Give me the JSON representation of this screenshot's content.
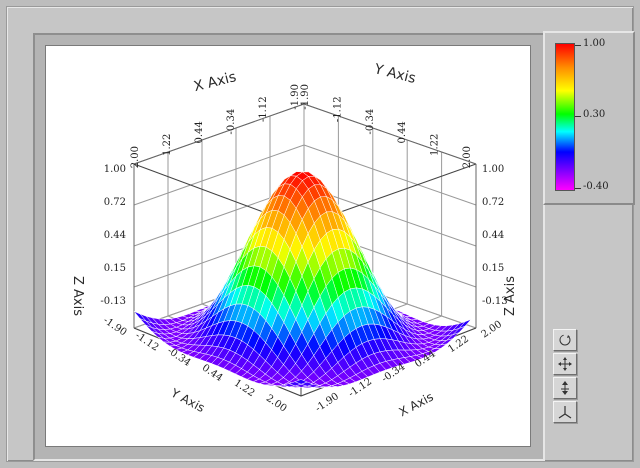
{
  "graph": {
    "axes": {
      "x_label": "X Axis",
      "y_label": "Y Axis",
      "z_label": "Z Axis"
    },
    "x_ticks": [
      "2.00",
      "1.22",
      "0.44",
      "-0.34",
      "-1.12",
      "-1.90"
    ],
    "y_ticks": [
      "-1.90",
      "-1.12",
      "-0.34",
      "0.44",
      "1.22",
      "2.00"
    ],
    "z_ticks": [
      "1.00",
      "0.72",
      "0.44",
      "0.15",
      "-0.13"
    ],
    "colors": {
      "background": "#bdbdbd",
      "plot_bg": "#ffffff",
      "grid": "#8a8a8a",
      "mesh_line": "#ffffff"
    }
  },
  "colorbar": {
    "labels": [
      "1.00",
      "0.30",
      "-0.40"
    ],
    "max": 1.0,
    "min": -0.4
  },
  "toolbar": {
    "buttons": [
      {
        "name": "rotate-tool",
        "icon": "rotate-icon"
      },
      {
        "name": "pan-tool",
        "icon": "pan-icon"
      },
      {
        "name": "zoom-tool",
        "icon": "zoom-icon"
      },
      {
        "name": "reset-view-tool",
        "icon": "axes-icon"
      }
    ]
  },
  "chart_data": {
    "type": "surface",
    "function": "z = sin(r) / r style damped sinc surface",
    "x_range": [
      -1.9,
      2.0
    ],
    "y_range": [
      -1.9,
      2.0
    ],
    "z_range": [
      -0.13,
      1.0
    ],
    "colormap_range": [
      -0.4,
      1.0
    ]
  }
}
